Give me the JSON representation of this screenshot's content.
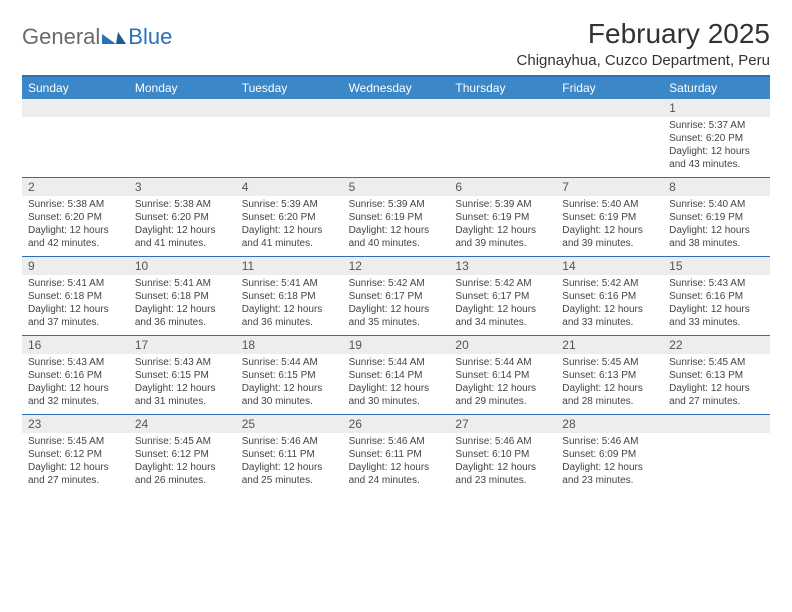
{
  "brand": {
    "general": "General",
    "blue": "Blue"
  },
  "title": "February 2025",
  "location": "Chignayhua, Cuzco Department, Peru",
  "colors": {
    "accent": "#2a71b8",
    "header_bg": "#3b87c8",
    "daynum_bg": "#ededed",
    "text": "#333333",
    "body_text": "#444444"
  },
  "day_headers": [
    "Sunday",
    "Monday",
    "Tuesday",
    "Wednesday",
    "Thursday",
    "Friday",
    "Saturday"
  ],
  "weeks": [
    [
      {
        "n": "",
        "sunrise": "",
        "sunset": "",
        "daylight": ""
      },
      {
        "n": "",
        "sunrise": "",
        "sunset": "",
        "daylight": ""
      },
      {
        "n": "",
        "sunrise": "",
        "sunset": "",
        "daylight": ""
      },
      {
        "n": "",
        "sunrise": "",
        "sunset": "",
        "daylight": ""
      },
      {
        "n": "",
        "sunrise": "",
        "sunset": "",
        "daylight": ""
      },
      {
        "n": "",
        "sunrise": "",
        "sunset": "",
        "daylight": ""
      },
      {
        "n": "1",
        "sunrise": "Sunrise: 5:37 AM",
        "sunset": "Sunset: 6:20 PM",
        "daylight": "Daylight: 12 hours and 43 minutes."
      }
    ],
    [
      {
        "n": "2",
        "sunrise": "Sunrise: 5:38 AM",
        "sunset": "Sunset: 6:20 PM",
        "daylight": "Daylight: 12 hours and 42 minutes."
      },
      {
        "n": "3",
        "sunrise": "Sunrise: 5:38 AM",
        "sunset": "Sunset: 6:20 PM",
        "daylight": "Daylight: 12 hours and 41 minutes."
      },
      {
        "n": "4",
        "sunrise": "Sunrise: 5:39 AM",
        "sunset": "Sunset: 6:20 PM",
        "daylight": "Daylight: 12 hours and 41 minutes."
      },
      {
        "n": "5",
        "sunrise": "Sunrise: 5:39 AM",
        "sunset": "Sunset: 6:19 PM",
        "daylight": "Daylight: 12 hours and 40 minutes."
      },
      {
        "n": "6",
        "sunrise": "Sunrise: 5:39 AM",
        "sunset": "Sunset: 6:19 PM",
        "daylight": "Daylight: 12 hours and 39 minutes."
      },
      {
        "n": "7",
        "sunrise": "Sunrise: 5:40 AM",
        "sunset": "Sunset: 6:19 PM",
        "daylight": "Daylight: 12 hours and 39 minutes."
      },
      {
        "n": "8",
        "sunrise": "Sunrise: 5:40 AM",
        "sunset": "Sunset: 6:19 PM",
        "daylight": "Daylight: 12 hours and 38 minutes."
      }
    ],
    [
      {
        "n": "9",
        "sunrise": "Sunrise: 5:41 AM",
        "sunset": "Sunset: 6:18 PM",
        "daylight": "Daylight: 12 hours and 37 minutes."
      },
      {
        "n": "10",
        "sunrise": "Sunrise: 5:41 AM",
        "sunset": "Sunset: 6:18 PM",
        "daylight": "Daylight: 12 hours and 36 minutes."
      },
      {
        "n": "11",
        "sunrise": "Sunrise: 5:41 AM",
        "sunset": "Sunset: 6:18 PM",
        "daylight": "Daylight: 12 hours and 36 minutes."
      },
      {
        "n": "12",
        "sunrise": "Sunrise: 5:42 AM",
        "sunset": "Sunset: 6:17 PM",
        "daylight": "Daylight: 12 hours and 35 minutes."
      },
      {
        "n": "13",
        "sunrise": "Sunrise: 5:42 AM",
        "sunset": "Sunset: 6:17 PM",
        "daylight": "Daylight: 12 hours and 34 minutes."
      },
      {
        "n": "14",
        "sunrise": "Sunrise: 5:42 AM",
        "sunset": "Sunset: 6:16 PM",
        "daylight": "Daylight: 12 hours and 33 minutes."
      },
      {
        "n": "15",
        "sunrise": "Sunrise: 5:43 AM",
        "sunset": "Sunset: 6:16 PM",
        "daylight": "Daylight: 12 hours and 33 minutes."
      }
    ],
    [
      {
        "n": "16",
        "sunrise": "Sunrise: 5:43 AM",
        "sunset": "Sunset: 6:16 PM",
        "daylight": "Daylight: 12 hours and 32 minutes."
      },
      {
        "n": "17",
        "sunrise": "Sunrise: 5:43 AM",
        "sunset": "Sunset: 6:15 PM",
        "daylight": "Daylight: 12 hours and 31 minutes."
      },
      {
        "n": "18",
        "sunrise": "Sunrise: 5:44 AM",
        "sunset": "Sunset: 6:15 PM",
        "daylight": "Daylight: 12 hours and 30 minutes."
      },
      {
        "n": "19",
        "sunrise": "Sunrise: 5:44 AM",
        "sunset": "Sunset: 6:14 PM",
        "daylight": "Daylight: 12 hours and 30 minutes."
      },
      {
        "n": "20",
        "sunrise": "Sunrise: 5:44 AM",
        "sunset": "Sunset: 6:14 PM",
        "daylight": "Daylight: 12 hours and 29 minutes."
      },
      {
        "n": "21",
        "sunrise": "Sunrise: 5:45 AM",
        "sunset": "Sunset: 6:13 PM",
        "daylight": "Daylight: 12 hours and 28 minutes."
      },
      {
        "n": "22",
        "sunrise": "Sunrise: 5:45 AM",
        "sunset": "Sunset: 6:13 PM",
        "daylight": "Daylight: 12 hours and 27 minutes."
      }
    ],
    [
      {
        "n": "23",
        "sunrise": "Sunrise: 5:45 AM",
        "sunset": "Sunset: 6:12 PM",
        "daylight": "Daylight: 12 hours and 27 minutes."
      },
      {
        "n": "24",
        "sunrise": "Sunrise: 5:45 AM",
        "sunset": "Sunset: 6:12 PM",
        "daylight": "Daylight: 12 hours and 26 minutes."
      },
      {
        "n": "25",
        "sunrise": "Sunrise: 5:46 AM",
        "sunset": "Sunset: 6:11 PM",
        "daylight": "Daylight: 12 hours and 25 minutes."
      },
      {
        "n": "26",
        "sunrise": "Sunrise: 5:46 AM",
        "sunset": "Sunset: 6:11 PM",
        "daylight": "Daylight: 12 hours and 24 minutes."
      },
      {
        "n": "27",
        "sunrise": "Sunrise: 5:46 AM",
        "sunset": "Sunset: 6:10 PM",
        "daylight": "Daylight: 12 hours and 23 minutes."
      },
      {
        "n": "28",
        "sunrise": "Sunrise: 5:46 AM",
        "sunset": "Sunset: 6:09 PM",
        "daylight": "Daylight: 12 hours and 23 minutes."
      },
      {
        "n": "",
        "sunrise": "",
        "sunset": "",
        "daylight": ""
      }
    ]
  ]
}
